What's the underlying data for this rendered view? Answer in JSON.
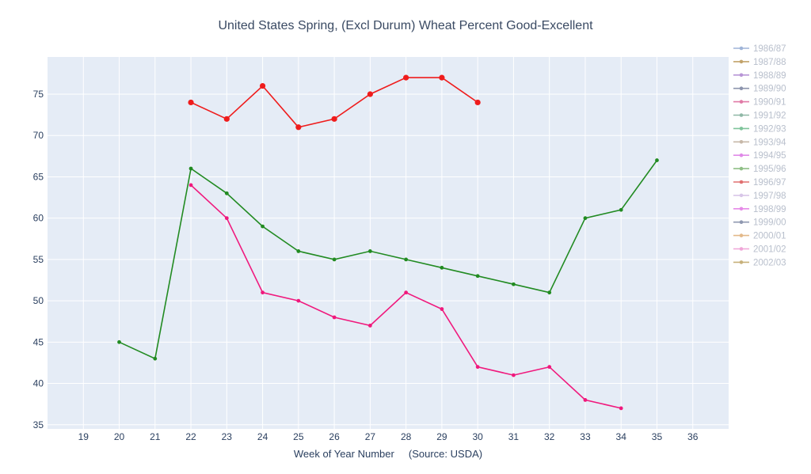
{
  "chart_data": {
    "type": "line",
    "title": "United States Spring, (Excl Durum) Wheat Percent Good-Excellent",
    "xlabel": "Week of Year Number     (Source: USDA)",
    "ylabel": "",
    "xlim": [
      18,
      37
    ],
    "ylim": [
      34.5,
      79.5
    ],
    "xticks": [
      19,
      20,
      21,
      22,
      23,
      24,
      25,
      26,
      27,
      28,
      29,
      30,
      31,
      32,
      33,
      34,
      35,
      36
    ],
    "yticks": [
      35,
      40,
      45,
      50,
      55,
      60,
      65,
      70,
      75
    ],
    "grid": true,
    "legend_position": "right",
    "plot_bg": "#e5ecf6",
    "legend": [
      {
        "name": "1986/87",
        "color": "#9fb4d8"
      },
      {
        "name": "1987/88",
        "color": "#c2a36a"
      },
      {
        "name": "1988/89",
        "color": "#b896d6"
      },
      {
        "name": "1989/90",
        "color": "#8c94ad"
      },
      {
        "name": "1990/91",
        "color": "#e07aa6"
      },
      {
        "name": "1991/92",
        "color": "#8fb8a6"
      },
      {
        "name": "1992/93",
        "color": "#7fc49a"
      },
      {
        "name": "1993/94",
        "color": "#c7b8a8"
      },
      {
        "name": "1994/95",
        "color": "#e08ae8"
      },
      {
        "name": "1995/96",
        "color": "#8fbf86"
      },
      {
        "name": "1996/97",
        "color": "#e07070"
      },
      {
        "name": "1997/98",
        "color": "#d8c6e8"
      },
      {
        "name": "1998/99",
        "color": "#e68ae8"
      },
      {
        "name": "1999/00",
        "color": "#8f98b0"
      },
      {
        "name": "2000/01",
        "color": "#e3b98a"
      },
      {
        "name": "2001/02",
        "color": "#f0a6d8"
      },
      {
        "name": "2002/03",
        "color": "#c7b07a"
      }
    ],
    "series": [
      {
        "color": "#ef1c1c",
        "marker_size": 3.6,
        "x": [
          22,
          23,
          24,
          25,
          26,
          27,
          28,
          29,
          30
        ],
        "values": [
          74,
          72,
          76,
          71,
          72,
          75,
          77,
          77,
          74
        ]
      },
      {
        "color": "#228b22",
        "marker_size": 2.4,
        "x": [
          20,
          21,
          22,
          23,
          24,
          25,
          26,
          27,
          28,
          29,
          30,
          31,
          32,
          33,
          34,
          35
        ],
        "values": [
          45,
          43,
          66,
          63,
          59,
          56,
          55,
          56,
          55,
          54,
          53,
          52,
          51,
          60,
          61,
          67
        ]
      },
      {
        "color": "#f0197d",
        "marker_size": 2.4,
        "x": [
          22,
          23,
          24,
          25,
          26,
          27,
          28,
          29,
          30,
          31,
          32,
          33,
          34
        ],
        "values": [
          64,
          60,
          51,
          50,
          48,
          47,
          51,
          49,
          42,
          41,
          42,
          38,
          37
        ]
      }
    ]
  }
}
